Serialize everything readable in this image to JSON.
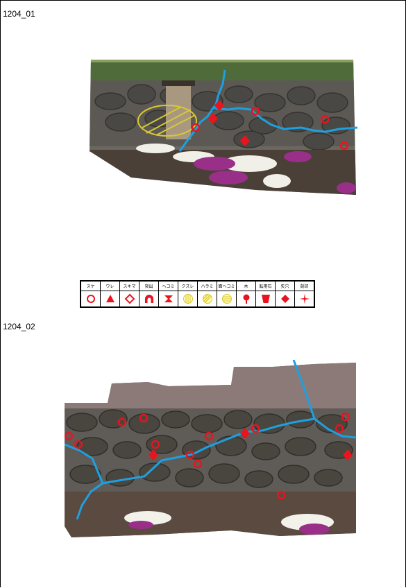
{
  "sections": [
    {
      "label": "1204_01"
    },
    {
      "label": "1204_02"
    }
  ],
  "legend": {
    "columns": [
      {
        "header": "ヌケ",
        "icon": "hollow-circle-icon"
      },
      {
        "header": "ワレ",
        "icon": "filled-triangle-icon"
      },
      {
        "header": "スキマ",
        "icon": "hollow-diamond-icon"
      },
      {
        "header": "突出",
        "icon": "arch-icon"
      },
      {
        "header": "ヘコミ",
        "icon": "hourglass-icon"
      },
      {
        "header": "クズレ",
        "icon": "vertical-hatch-circle-icon"
      },
      {
        "header": "ハラミ",
        "icon": "diagonal-hatch-circle-icon"
      },
      {
        "header": "面ヘコミ",
        "icon": "horizontal-hatch-circle-icon"
      },
      {
        "header": "木",
        "icon": "tree-icon"
      },
      {
        "header": "転用石",
        "icon": "trapezoid-icon"
      },
      {
        "header": "矢穴",
        "icon": "filled-diamond-icon"
      },
      {
        "header": "刻印",
        "icon": "star-cross-icon"
      }
    ]
  },
  "colors": {
    "marker_red": "#e8141e",
    "crack_blue": "#1ea0e0",
    "bulge_yellow": "#d8c832"
  }
}
